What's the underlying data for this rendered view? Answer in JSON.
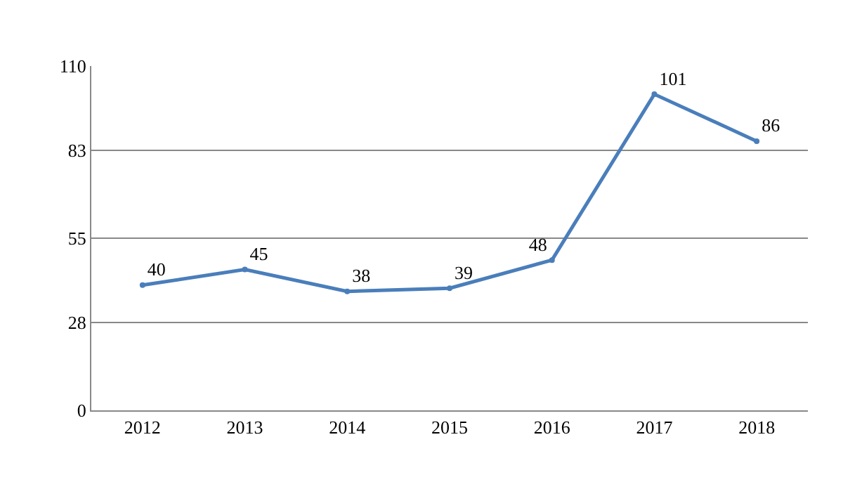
{
  "chart_data": {
    "type": "line",
    "categories": [
      "2012",
      "2013",
      "2014",
      "2015",
      "2016",
      "2017",
      "2018"
    ],
    "series": [
      {
        "color": "#4a7ebb",
        "values": [
          40,
          45,
          38,
          39,
          48,
          101,
          86
        ]
      }
    ],
    "ylim": [
      0,
      110
    ],
    "yticks": [
      0,
      28,
      55,
      83,
      110
    ],
    "grid": "y",
    "data_labels": true,
    "marker": "circle",
    "line_style": "solid"
  }
}
